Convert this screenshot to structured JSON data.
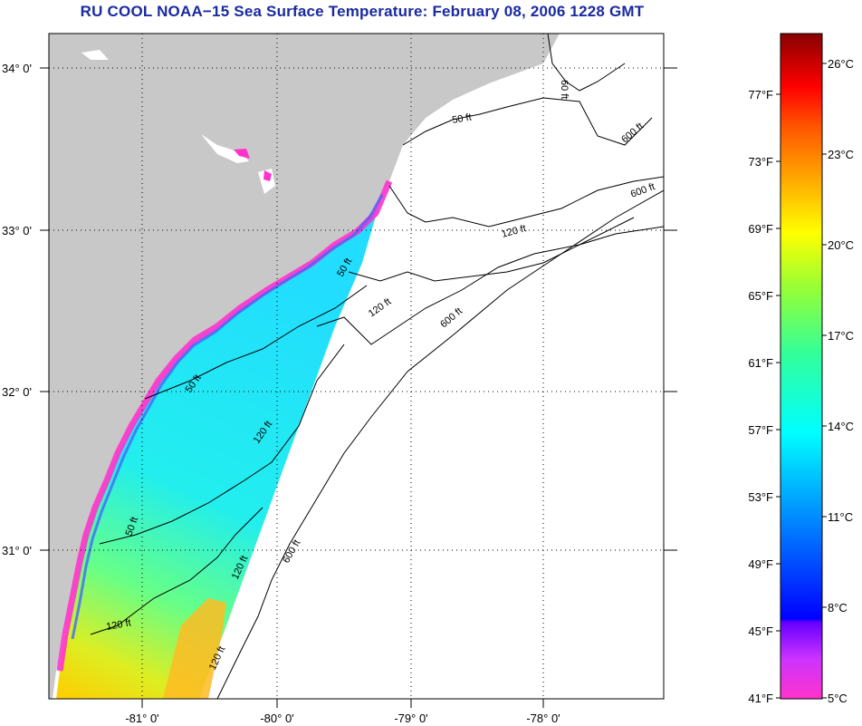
{
  "title": "RU COOL  NOAA−15  Sea Surface Temperature:  February 08, 2006 1228 GMT",
  "map": {
    "lat_labels": [
      "34° 0'",
      "33° 0'",
      "32° 0'",
      "31° 0'"
    ],
    "lon_labels": [
      "-81° 0'",
      "-80° 0'",
      "-79° 0'",
      "-78° 0'"
    ],
    "contour_labels": [
      "50 ft",
      "50 ft",
      "50 ft",
      "50 ft",
      "60 ft",
      "120 ft",
      "120 ft",
      "120 ft",
      "120 ft",
      "120 ft",
      "600 ft",
      "600 ft",
      "600 ft",
      "600 ft",
      "120 ft"
    ],
    "colors": {
      "land": "#c8c8c8",
      "ocean_nodata": "#ffffff",
      "grid": "#000000"
    }
  },
  "colorbar": {
    "fahrenheit": [
      "41°F",
      "45°F",
      "49°F",
      "53°F",
      "57°F",
      "61°F",
      "65°F",
      "69°F",
      "73°F",
      "77°F"
    ],
    "celsius": [
      "5°C",
      "8°C",
      "11°C",
      "14°C",
      "17°C",
      "20°C",
      "23°C",
      "26°C"
    ],
    "gradient": [
      "#ff33cc",
      "#9933ff",
      "#0000ff",
      "#0088ff",
      "#00ffff",
      "#66ff66",
      "#ccff33",
      "#ffff00",
      "#ffaa00",
      "#ff5500",
      "#ff0000",
      "#990000"
    ]
  }
}
